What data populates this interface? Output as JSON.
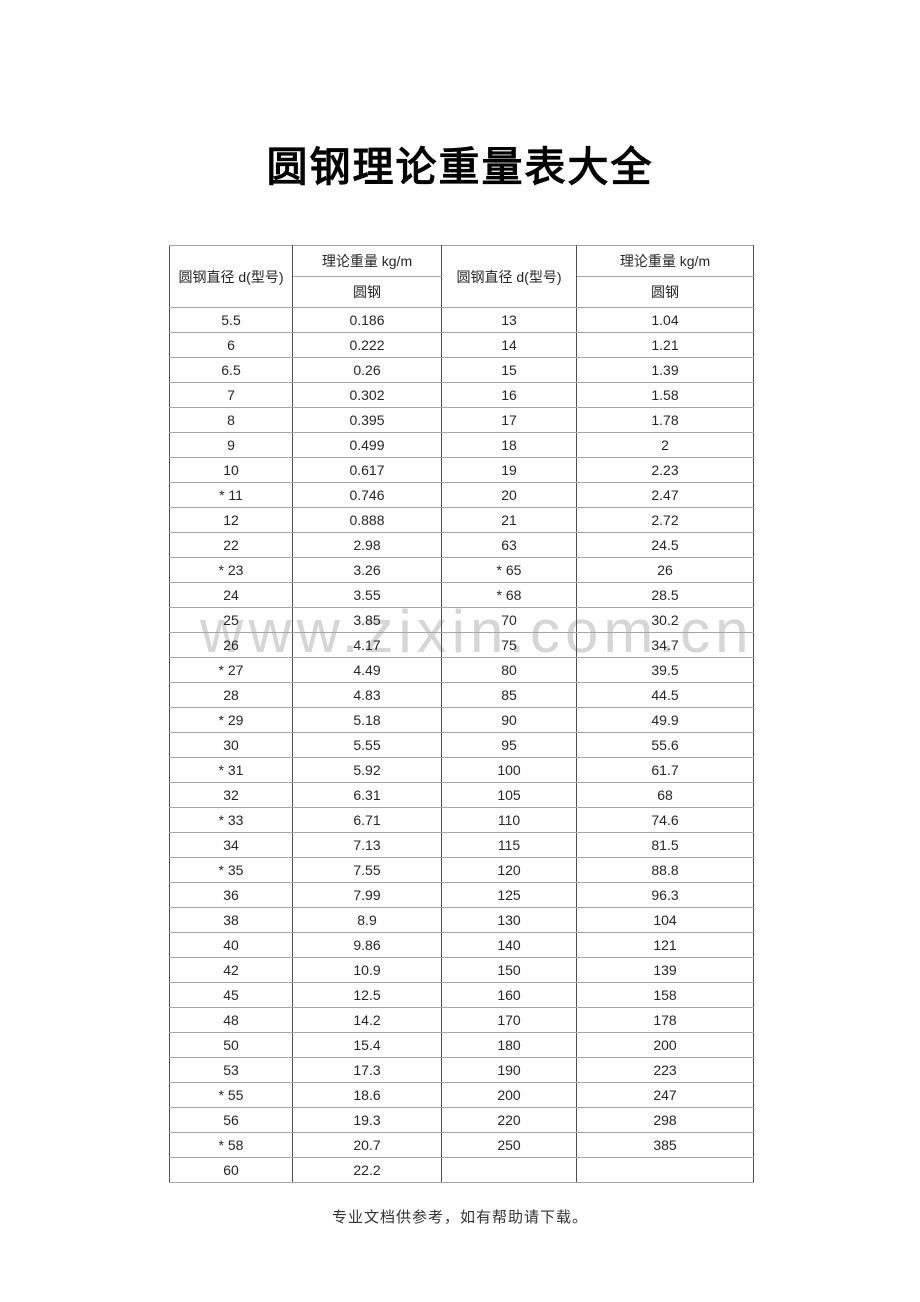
{
  "document": {
    "title": "圆钢理论重量表大全",
    "watermark": "www.zixin.com.cn",
    "footer_note": "专业文档供参考，如有帮助请下载。"
  },
  "table": {
    "headers": {
      "diameter_left": "圆钢直径 d(型号)",
      "weight_left_title": "理论重量  kg/m",
      "weight_left_sub": "圆钢",
      "diameter_right": "圆钢直径 d(型号)",
      "weight_right_title": "理论重量 kg/m",
      "weight_right_sub": "圆钢"
    },
    "rows": [
      [
        "5.5",
        "0.186",
        "13",
        "1.04"
      ],
      [
        "6",
        "0.222",
        "14",
        "1.21"
      ],
      [
        "6.5",
        "0.26",
        "15",
        "1.39"
      ],
      [
        "7",
        "0.302",
        "16",
        "1.58"
      ],
      [
        "8",
        "0.395",
        "17",
        "1.78"
      ],
      [
        "9",
        "0.499",
        "18",
        "2"
      ],
      [
        "10",
        "0.617",
        "19",
        "2.23"
      ],
      [
        "* 11",
        "0.746",
        "20",
        "2.47"
      ],
      [
        "12",
        "0.888",
        "21",
        "2.72"
      ],
      [
        "22",
        "2.98",
        "63",
        "24.5"
      ],
      [
        "* 23",
        "3.26",
        "* 65",
        "26"
      ],
      [
        "24",
        "3.55",
        "* 68",
        "28.5"
      ],
      [
        "25",
        "3.85",
        "70",
        "30.2"
      ],
      [
        "26",
        "4.17",
        "75",
        "34.7"
      ],
      [
        "* 27",
        "4.49",
        "80",
        "39.5"
      ],
      [
        "28",
        "4.83",
        "85",
        "44.5"
      ],
      [
        "* 29",
        "5.18",
        "90",
        "49.9"
      ],
      [
        "30",
        "5.55",
        "95",
        "55.6"
      ],
      [
        "* 31",
        "5.92",
        "100",
        "61.7"
      ],
      [
        "32",
        "6.31",
        "105",
        "68"
      ],
      [
        "* 33",
        "6.71",
        "110",
        "74.6"
      ],
      [
        "34",
        "7.13",
        "115",
        "81.5"
      ],
      [
        "* 35",
        "7.55",
        "120",
        "88.8"
      ],
      [
        "36",
        "7.99",
        "125",
        "96.3"
      ],
      [
        "38",
        "8.9",
        "130",
        "104"
      ],
      [
        "40",
        "9.86",
        "140",
        "121"
      ],
      [
        "42",
        "10.9",
        "150",
        "139"
      ],
      [
        "45",
        "12.5",
        "160",
        "158"
      ],
      [
        "48",
        "14.2",
        "170",
        "178"
      ],
      [
        "50",
        "15.4",
        "180",
        "200"
      ],
      [
        "53",
        "17.3",
        "190",
        "223"
      ],
      [
        "* 55",
        "18.6",
        "200",
        "247"
      ],
      [
        "56",
        "19.3",
        "220",
        "298"
      ],
      [
        "* 58",
        "20.7",
        "250",
        "385"
      ],
      [
        "60",
        "22.2",
        "",
        ""
      ]
    ]
  },
  "colors": {
    "border_vertical": "#4f4f4f",
    "border_horizontal": "#a6a6a6",
    "watermark": "#d6d6d6",
    "title_text": "#000000",
    "body_text": "#262626"
  }
}
